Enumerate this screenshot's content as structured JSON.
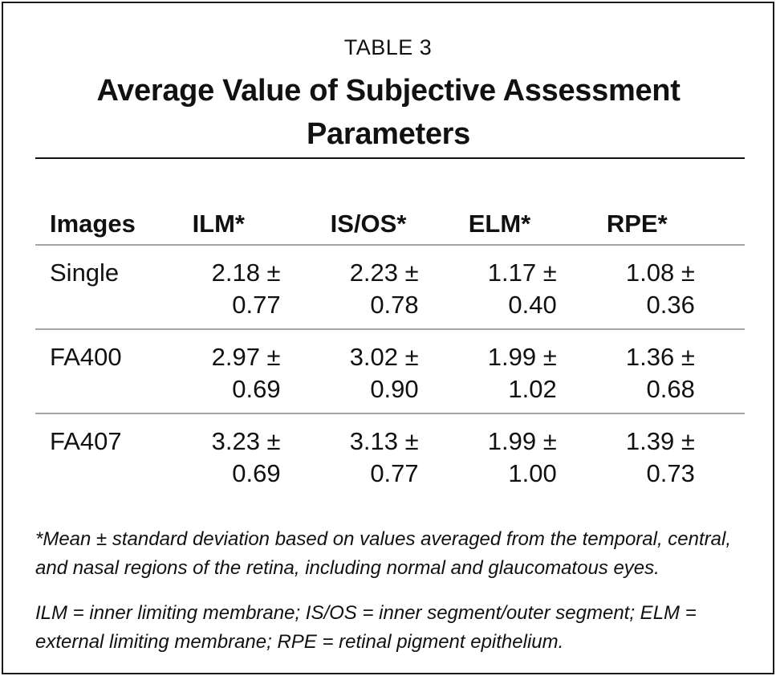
{
  "table_label": "TABLE 3",
  "title": "Average Value of Subjective Assessment Parameters",
  "columns": [
    "Images",
    "ILM*",
    "IS/OS*",
    "ELM*",
    "RPE*"
  ],
  "rows": [
    {
      "image": "Single",
      "cells": [
        [
          "2.18 ±",
          "0.77"
        ],
        [
          "2.23 ±",
          "0.78"
        ],
        [
          "1.17 ±",
          "0.40"
        ],
        [
          "1.08 ±",
          "0.36"
        ]
      ]
    },
    {
      "image": "FA400",
      "cells": [
        [
          "2.97 ±",
          "0.69"
        ],
        [
          "3.02 ±",
          "0.90"
        ],
        [
          "1.99 ±",
          "1.02"
        ],
        [
          "1.36 ±",
          "0.68"
        ]
      ]
    },
    {
      "image": "FA407",
      "cells": [
        [
          "3.23 ±",
          "0.69"
        ],
        [
          "3.13 ±",
          "0.77"
        ],
        [
          "1.99 ±",
          "1.00"
        ],
        [
          "1.39 ±",
          "0.73"
        ]
      ]
    }
  ],
  "footnote": "*Mean ± standard deviation based on values averaged from the temporal, central, and nasal regions of the retina, including normal and glaucomatous eyes.",
  "abbreviations": "ILM = inner limiting membrane; IS/OS = inner segment/outer segment; ELM = external limiting membrane; RPE = retinal pigment epithelium."
}
